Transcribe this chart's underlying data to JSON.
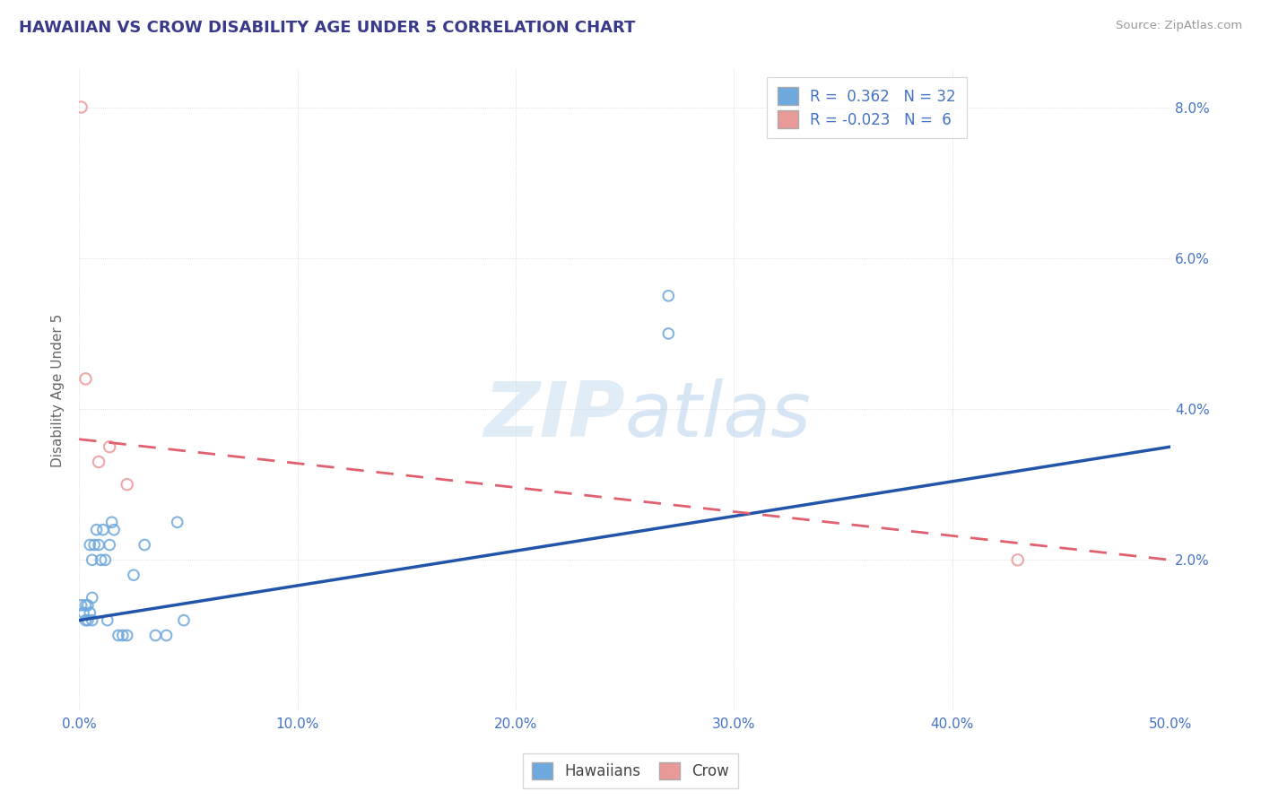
{
  "title": "HAWAIIAN VS CROW DISABILITY AGE UNDER 5 CORRELATION CHART",
  "source": "Source: ZipAtlas.com",
  "ylabel": "Disability Age Under 5",
  "xlim": [
    0.0,
    0.5
  ],
  "ylim": [
    0.0,
    0.085
  ],
  "xticks": [
    0.0,
    0.1,
    0.2,
    0.3,
    0.4,
    0.5
  ],
  "yticks": [
    0.0,
    0.02,
    0.04,
    0.06,
    0.08
  ],
  "xticklabels": [
    "0.0%",
    "10.0%",
    "20.0%",
    "30.0%",
    "40.0%",
    "50.0%"
  ],
  "yticklabels_right": [
    "",
    "2.0%",
    "4.0%",
    "6.0%",
    "8.0%"
  ],
  "hawaiian_color": "#6fa8dc",
  "hawaiian_edge": "#4a86c8",
  "crow_color": "#ea9999",
  "crow_edge": "#d06060",
  "line_blue": "#2255aa",
  "line_pink": "#e06070",
  "hawaiian_R": 0.362,
  "hawaiian_N": 32,
  "crow_R": -0.023,
  "crow_N": 6,
  "watermark_zip": "ZIP",
  "watermark_atlas": "atlas",
  "legend_hawaiians": "Hawaiians",
  "legend_crow": "Crow",
  "hawaiian_x": [
    0.001,
    0.002,
    0.003,
    0.003,
    0.004,
    0.004,
    0.005,
    0.005,
    0.006,
    0.006,
    0.006,
    0.007,
    0.008,
    0.009,
    0.01,
    0.011,
    0.012,
    0.013,
    0.014,
    0.015,
    0.016,
    0.018,
    0.02,
    0.022,
    0.025,
    0.03,
    0.035,
    0.04,
    0.045,
    0.048,
    0.27,
    0.27
  ],
  "hawaiian_y": [
    0.014,
    0.013,
    0.012,
    0.014,
    0.012,
    0.014,
    0.013,
    0.022,
    0.012,
    0.015,
    0.02,
    0.022,
    0.024,
    0.022,
    0.02,
    0.024,
    0.02,
    0.012,
    0.022,
    0.025,
    0.024,
    0.01,
    0.01,
    0.01,
    0.018,
    0.022,
    0.01,
    0.01,
    0.025,
    0.012,
    0.055,
    0.05
  ],
  "crow_x": [
    0.001,
    0.003,
    0.009,
    0.014,
    0.022,
    0.43
  ],
  "crow_y": [
    0.08,
    0.044,
    0.033,
    0.035,
    0.03,
    0.02
  ],
  "hawaiian_trend_x": [
    0.0,
    0.5
  ],
  "hawaiian_trend_y": [
    0.012,
    0.035
  ],
  "crow_trend_x": [
    0.0,
    0.5
  ],
  "crow_trend_y": [
    0.036,
    0.02
  ]
}
